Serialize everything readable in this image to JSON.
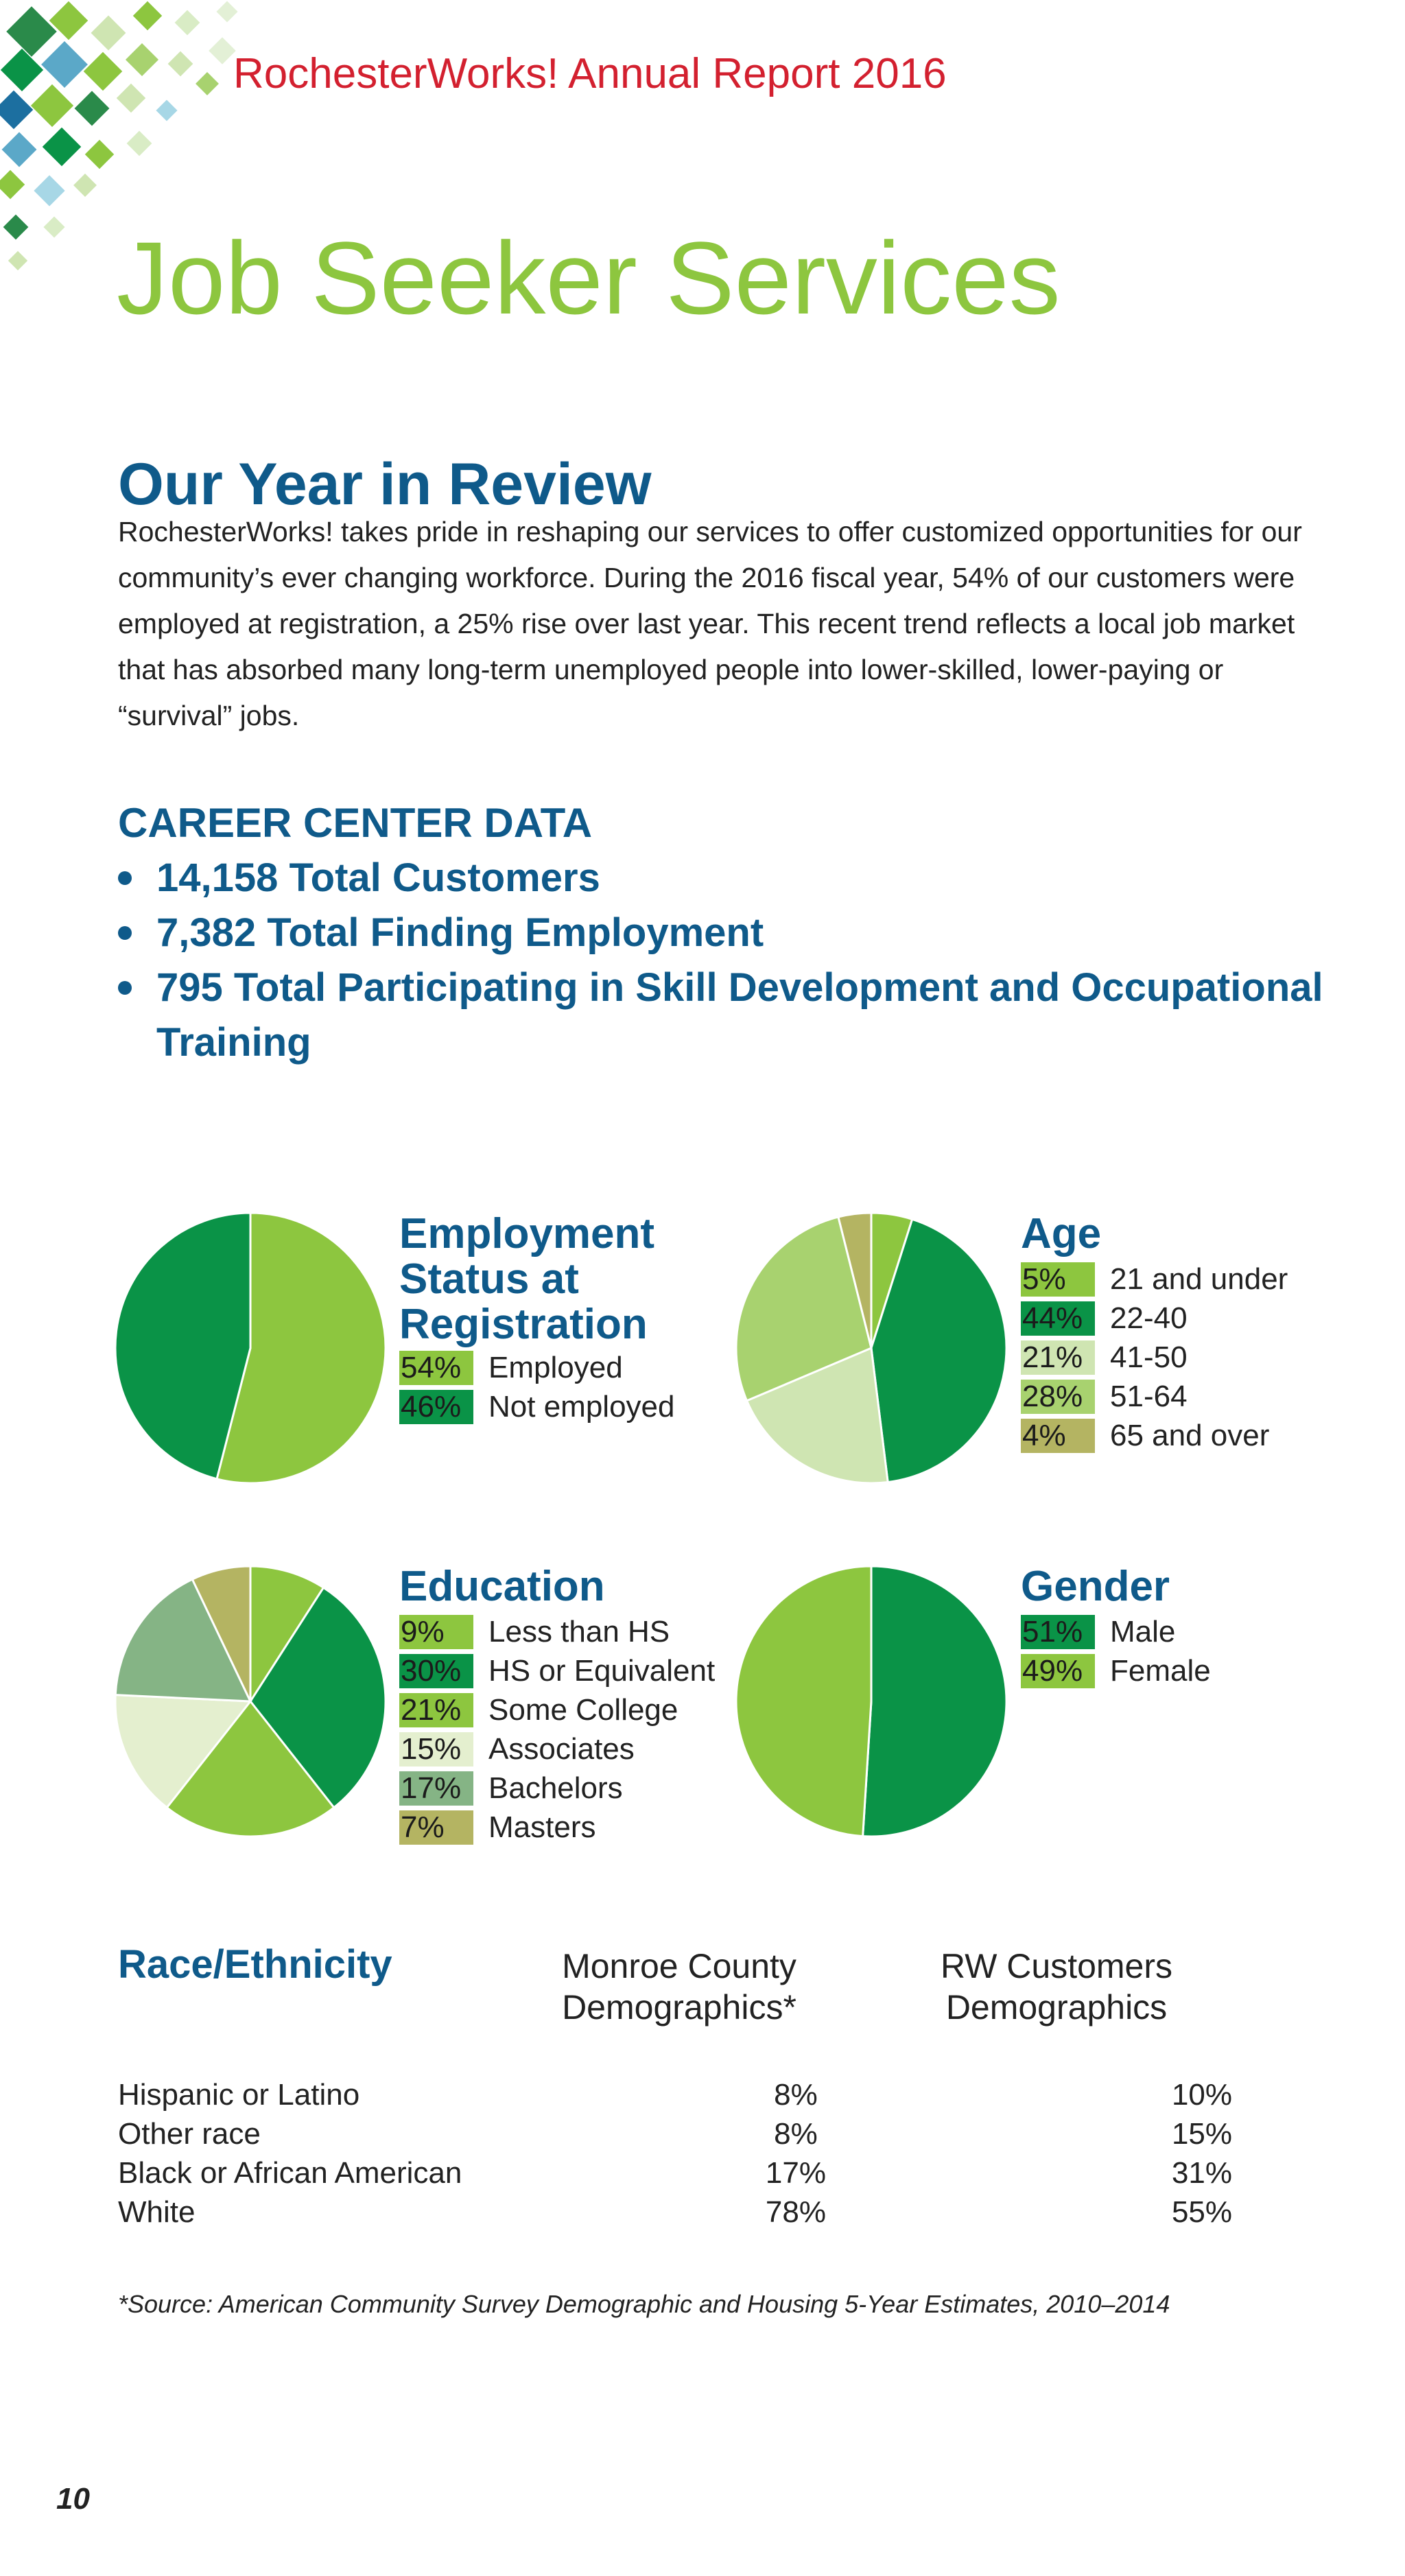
{
  "header": {
    "report_title": "RochesterWorks! Annual Report 2016",
    "section_title": "Job Seeker Services"
  },
  "review": {
    "heading": "Our Year in Review",
    "body": "RochesterWorks! takes pride in reshaping our services to offer customized opportunities for our community’s ever changing workforce. During the 2016 fiscal year, 54% of our customers were employed at registration, a 25% rise over last year. This recent trend reflects a local job market that has absorbed many long-term unemployed people into lower-skilled, lower-paying or “survival” jobs."
  },
  "career_center": {
    "heading": "CAREER CENTER DATA",
    "items": [
      "14,158 Total Customers",
      "7,382 Total Finding Employment",
      "795 Total Participating in Skill Development and Occupational Training"
    ]
  },
  "chart_data": [
    {
      "type": "pie",
      "title": "Employment Status at Registration",
      "labels": [
        "Employed",
        "Not employed"
      ],
      "values": [
        54,
        46
      ],
      "value_labels": [
        "54%",
        "46%"
      ],
      "colors": [
        "#8dc63f",
        "#0a9347"
      ]
    },
    {
      "type": "pie",
      "title": "Age",
      "labels": [
        "21 and under",
        "22-40",
        "41-50",
        "51-64",
        "65 and over"
      ],
      "values": [
        5,
        44,
        21,
        28,
        4
      ],
      "value_labels": [
        "5%",
        "44%",
        "21%",
        "28%",
        "4%"
      ],
      "colors": [
        "#8dc63f",
        "#0a9347",
        "#cfe5b2",
        "#a8d26f",
        "#b4b462"
      ]
    },
    {
      "type": "pie",
      "title": "Education",
      "labels": [
        "Less than HS",
        "HS or Equivalent",
        "Some College",
        "Associates",
        "Bachelors",
        "Masters"
      ],
      "values": [
        9,
        30,
        21,
        15,
        17,
        7
      ],
      "value_labels": [
        "9%",
        "30%",
        "21%",
        "15%",
        "17%",
        "7%"
      ],
      "colors": [
        "#8dc63f",
        "#0a9347",
        "#8dc63f",
        "#e4efcf",
        "#85b485",
        "#b4b462"
      ]
    },
    {
      "type": "pie",
      "title": "Gender",
      "labels": [
        "Male",
        "Female"
      ],
      "values": [
        51,
        49
      ],
      "value_labels": [
        "51%",
        "49%"
      ],
      "colors": [
        "#0a9347",
        "#8dc63f"
      ]
    }
  ],
  "race": {
    "heading": "Race/Ethnicity",
    "col1": "Monroe County Demographics*",
    "col2": "RW Customers Demographics",
    "rows": [
      {
        "label": "Hispanic or Latino",
        "monroe": "8%",
        "rw": "10%"
      },
      {
        "label": "Other race",
        "monroe": "8%",
        "rw": "15%"
      },
      {
        "label": "Black or African American",
        "monroe": "17%",
        "rw": "31%"
      },
      {
        "label": "White",
        "monroe": "78%",
        "rw": "55%"
      }
    ]
  },
  "footnote": "*Source: American Community Survey Demographic and Housing 5-Year Estimates, 2010–2014",
  "page_number": "10"
}
